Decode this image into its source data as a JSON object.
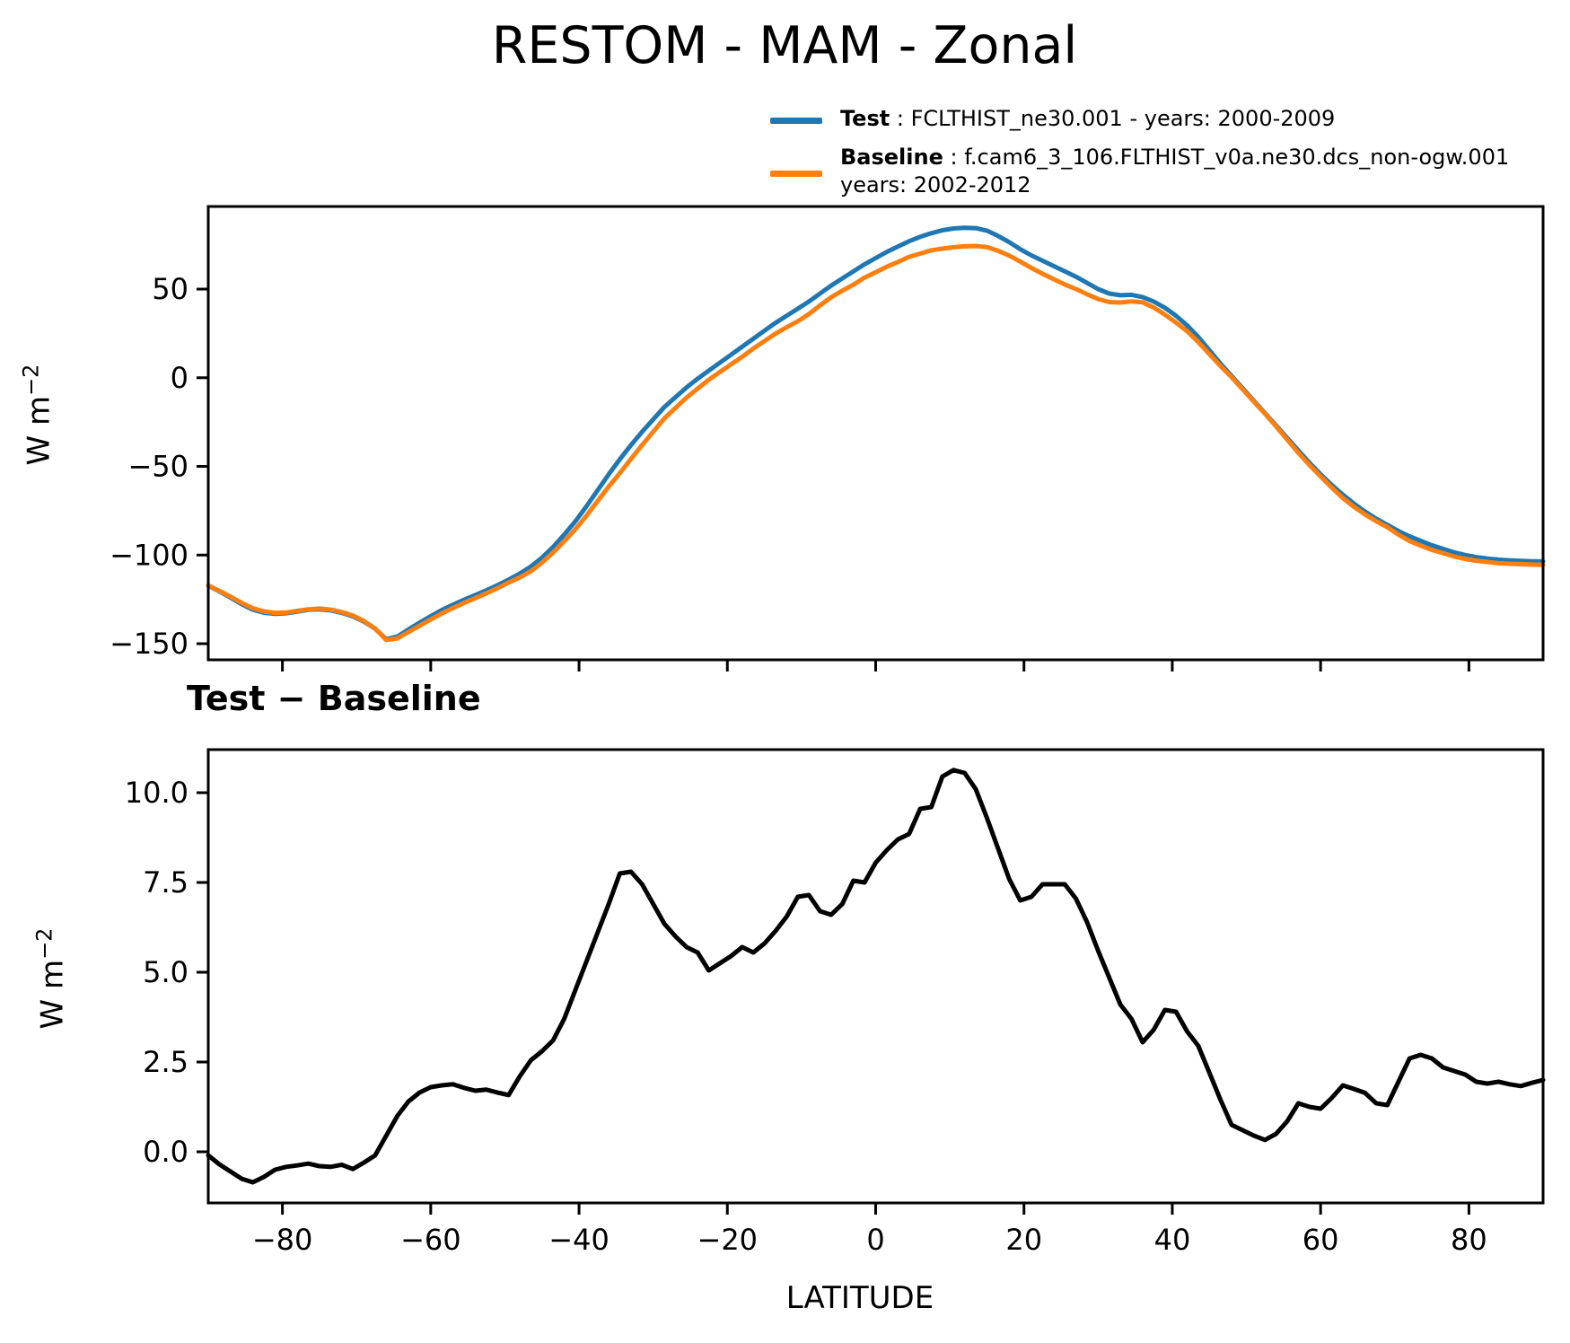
{
  "title": "RESTOM - MAM - Zonal",
  "legend": {
    "entries": [
      {
        "id": "test",
        "label": "Test",
        "sep": " : ",
        "desc": "FCLTHIST_ne30.001 - years: 2000-2009",
        "color": "#1f77b4"
      },
      {
        "id": "baseline",
        "label": "Baseline",
        "sep": " : ",
        "desc": "f.cam6_3_106.FLTHIST_v0a.ne30.dcs_non-ogw.001",
        "desc2": "years: 2002-2012",
        "color": "#ff7f0e"
      }
    ]
  },
  "chart_data": [
    {
      "id": "zonal-mean",
      "type": "line",
      "title": "RESTOM - MAM - Zonal",
      "xlabel": "",
      "ylabel_base": "W m",
      "ylabel_sup": "−2",
      "xlim": [
        -90,
        90
      ],
      "ylim": [
        -159.1,
        96.6
      ],
      "xticks": [
        -80,
        -60,
        -40,
        -20,
        0,
        20,
        40,
        60,
        80
      ],
      "yticks": [
        50,
        0,
        -50,
        -100,
        -150
      ],
      "ytick_decimals": 0,
      "show_xtick_labels": false,
      "grid": false,
      "legend_position": "above-right",
      "x_start": -90,
      "x_step": 1.5,
      "series": [
        {
          "id": "test",
          "name": "Test",
          "color": "#1f77b4",
          "values": [
            -117.3,
            -120.5,
            -124,
            -127.7,
            -130.8,
            -132.5,
            -133.1,
            -132.8,
            -131.9,
            -130.9,
            -130.6,
            -131.2,
            -132.6,
            -134.6,
            -137.6,
            -141.6,
            -147.4,
            -146,
            -142,
            -138.2,
            -134.5,
            -131,
            -128,
            -125.2,
            -122.6,
            -119.9,
            -117,
            -113.9,
            -110.5,
            -106.5,
            -101.5,
            -95.5,
            -88.5,
            -81,
            -72.5,
            -63.5,
            -54.5,
            -46,
            -38,
            -30.5,
            -23.5,
            -16.5,
            -11,
            -5.5,
            -0.5,
            4,
            8.5,
            13,
            17.5,
            22,
            26.5,
            31,
            35,
            39,
            43,
            47.5,
            52,
            56,
            60,
            64,
            67.5,
            71,
            74,
            77,
            79.5,
            81.5,
            83.2,
            84.2,
            84.6,
            84.4,
            83,
            80,
            76.5,
            72.5,
            69,
            66,
            63,
            60,
            57,
            53.5,
            50,
            47.5,
            46.5,
            46.8,
            45.5,
            43,
            39.5,
            35,
            29.5,
            23,
            15.5,
            8,
            1,
            -6,
            -13,
            -20,
            -27,
            -34,
            -41,
            -48,
            -54.5,
            -60.5,
            -66,
            -71,
            -75.5,
            -79.5,
            -83,
            -86.5,
            -89.5,
            -92,
            -94.5,
            -96.5,
            -98.5,
            -100,
            -101.2,
            -102,
            -102.6,
            -103,
            -103.3,
            -103.5,
            -103.6
          ]
        },
        {
          "id": "baseline",
          "name": "Baseline",
          "color": "#ff7f0e",
          "values": [
            -117.2,
            -120.2,
            -123.5,
            -127,
            -130,
            -131.8,
            -132.6,
            -132.4,
            -131.5,
            -130.6,
            -130.2,
            -130.8,
            -132.2,
            -134.1,
            -137.3,
            -141.5,
            -147.9,
            -147,
            -143.4,
            -139.9,
            -136.3,
            -132.9,
            -129.9,
            -127,
            -124.3,
            -121.6,
            -118.7,
            -115.5,
            -112.6,
            -109.1,
            -104.3,
            -98.6,
            -92.2,
            -85.5,
            -77.8,
            -69.6,
            -61.4,
            -53.8,
            -45.8,
            -38,
            -30.4,
            -22.9,
            -17,
            -11.2,
            -6.1,
            -1.1,
            3.3,
            7.6,
            11.8,
            16.5,
            20.7,
            24.9,
            28.5,
            31.9,
            35.9,
            40.8,
            45.4,
            49.1,
            52.5,
            56.5,
            59.5,
            62.6,
            65.3,
            68.2,
            70,
            71.9,
            72.8,
            73.6,
            74.1,
            74.3,
            73.7,
            71.6,
            68.9,
            65.5,
            61.9,
            58.6,
            55.6,
            52.6,
            50,
            47.1,
            44.4,
            42.7,
            42.4,
            43.1,
            42.5,
            39.6,
            35.6,
            31.1,
            26.2,
            20.1,
            13.3,
            6.6,
            0.3,
            -6.6,
            -13.5,
            -20.3,
            -27.5,
            -34.9,
            -42.4,
            -49.3,
            -55.7,
            -62,
            -67.9,
            -72.8,
            -77.1,
            -80.9,
            -84.3,
            -88.5,
            -92.1,
            -94.7,
            -97.1,
            -98.9,
            -100.8,
            -102.2,
            -103.2,
            -103.9,
            -104.6,
            -104.9,
            -105.1,
            -105.4,
            -105.6
          ]
        }
      ]
    },
    {
      "id": "difference",
      "type": "line",
      "title": "Test − Baseline",
      "xlabel": "LATITUDE",
      "ylabel_base": "W m",
      "ylabel_sup": "−2",
      "xlim": [
        -90,
        90
      ],
      "ylim": [
        -1.425,
        11.2
      ],
      "xticks": [
        -80,
        -60,
        -40,
        -20,
        0,
        20,
        40,
        60,
        80
      ],
      "yticks": [
        10.0,
        7.5,
        5.0,
        2.5,
        0.0
      ],
      "ytick_decimals": 1,
      "show_xtick_labels": true,
      "grid": false,
      "x_start": -90,
      "x_step": 1.5,
      "series": [
        {
          "id": "difference",
          "name": "Test − Baseline",
          "color": "#000000",
          "values": [
            -0.1,
            -0.35,
            -0.55,
            -0.75,
            -0.85,
            -0.7,
            -0.5,
            -0.42,
            -0.38,
            -0.33,
            -0.4,
            -0.42,
            -0.36,
            -0.48,
            -0.3,
            -0.1,
            0.45,
            1,
            1.4,
            1.65,
            1.8,
            1.85,
            1.88,
            1.78,
            1.7,
            1.73,
            1.65,
            1.58,
            2.1,
            2.55,
            2.8,
            3.1,
            3.7,
            4.5,
            5.3,
            6.1,
            6.9,
            7.75,
            7.8,
            7.45,
            6.9,
            6.35,
            6,
            5.7,
            5.55,
            5.05,
            5.25,
            5.45,
            5.7,
            5.55,
            5.8,
            6.15,
            6.55,
            7.1,
            7.15,
            6.7,
            6.6,
            6.9,
            7.55,
            7.5,
            8.05,
            8.4,
            8.7,
            8.85,
            9.55,
            9.6,
            10.45,
            10.63,
            10.55,
            10.1,
            9.3,
            8.45,
            7.6,
            7,
            7.1,
            7.45,
            7.45,
            7.45,
            7.05,
            6.4,
            5.6,
            4.85,
            4.1,
            3.7,
            3.05,
            3.4,
            3.95,
            3.9,
            3.35,
            2.95,
            2.2,
            1.45,
            0.75,
            0.6,
            0.45,
            0.33,
            0.5,
            0.85,
            1.35,
            1.25,
            1.2,
            1.5,
            1.85,
            1.75,
            1.64,
            1.35,
            1.3,
            1.95,
            2.6,
            2.7,
            2.6,
            2.35,
            2.25,
            2.15,
            1.95,
            1.9,
            1.95,
            1.88,
            1.83,
            1.92,
            2
          ]
        }
      ]
    }
  ]
}
